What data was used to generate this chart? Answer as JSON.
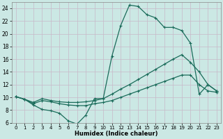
{
  "xlabel": "Humidex (Indice chaleur)",
  "bg_color": "#cbe8e4",
  "line_color": "#1a6b5a",
  "grid_color": "#c8b8c8",
  "xlim": [
    -0.5,
    23.5
  ],
  "ylim": [
    6,
    25
  ],
  "yticks": [
    6,
    8,
    10,
    12,
    14,
    16,
    18,
    20,
    22,
    24
  ],
  "xticks": [
    0,
    1,
    2,
    3,
    4,
    5,
    6,
    7,
    8,
    9,
    10,
    11,
    12,
    13,
    14,
    15,
    16,
    17,
    18,
    19,
    20,
    21,
    22,
    23
  ],
  "line1_x": [
    0,
    1,
    2,
    3,
    4,
    5,
    6,
    7,
    8,
    9,
    10,
    11,
    12,
    13,
    14,
    15,
    16,
    17,
    18,
    19,
    20,
    21,
    22,
    23
  ],
  "line1_y": [
    10.1,
    9.7,
    8.8,
    8.1,
    7.9,
    7.5,
    6.3,
    5.8,
    7.2,
    9.8,
    9.8,
    16.5,
    21.3,
    24.5,
    24.3,
    23.0,
    22.5,
    21.0,
    21.0,
    20.5,
    18.5,
    10.5,
    12.0,
    11.0
  ],
  "line2_x": [
    0,
    1,
    2,
    3,
    4,
    5,
    6,
    7,
    8,
    9,
    10,
    11,
    12,
    13,
    14,
    15,
    16,
    17,
    18,
    19,
    20,
    21,
    22,
    23
  ],
  "line2_y": [
    10.1,
    9.7,
    9.2,
    9.8,
    9.5,
    9.3,
    9.2,
    9.2,
    9.3,
    9.5,
    9.8,
    10.5,
    11.3,
    12.0,
    12.8,
    13.6,
    14.4,
    15.2,
    16.0,
    16.7,
    15.5,
    14.0,
    12.0,
    11.0
  ],
  "line3_x": [
    0,
    1,
    2,
    3,
    4,
    5,
    6,
    7,
    8,
    9,
    10,
    11,
    12,
    13,
    14,
    15,
    16,
    17,
    18,
    19,
    20,
    21,
    22,
    23
  ],
  "line3_y": [
    10.1,
    9.7,
    9.0,
    9.5,
    9.3,
    9.0,
    8.8,
    8.7,
    8.7,
    9.0,
    9.2,
    9.5,
    10.0,
    10.5,
    11.0,
    11.5,
    12.0,
    12.5,
    13.0,
    13.5,
    13.5,
    12.0,
    11.0,
    10.8
  ]
}
